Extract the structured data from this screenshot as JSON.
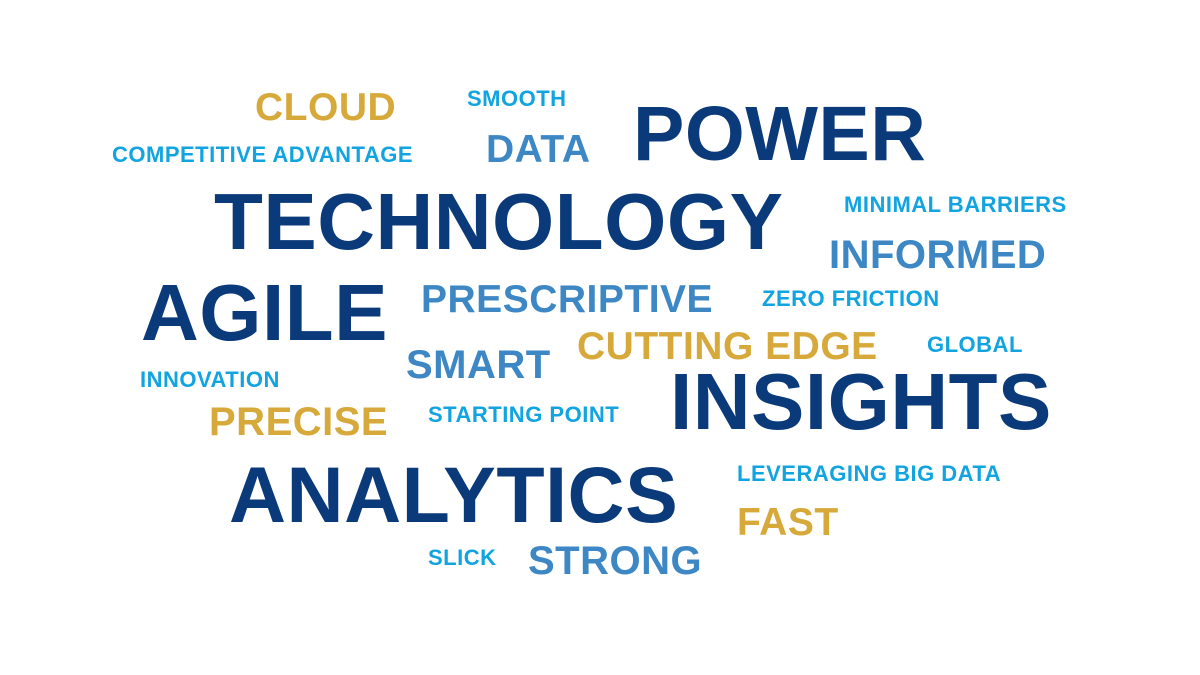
{
  "word_cloud": {
    "colors": {
      "navy": "#0b3a7a",
      "mid_blue": "#3d87c4",
      "light_blue": "#11a4e0",
      "gold": "#d6a93a"
    },
    "words": {
      "cloud": "CLOUD",
      "smooth": "SMOOTH",
      "power": "POWER",
      "competitive_advantage": "COMPETITIVE ADVANTAGE",
      "data": "DATA",
      "technology": "TECHNOLOGY",
      "minimal_barriers": "MINIMAL BARRIERS",
      "informed": "INFORMED",
      "agile": "AGILE",
      "prescriptive": "PRESCRIPTIVE",
      "zero_friction": "ZERO FRICTION",
      "cutting_edge": "CUTTING EDGE",
      "global": "GLOBAL",
      "smart": "SMART",
      "innovation": "INNOVATION",
      "insights": "INSIGHTS",
      "precise": "PRECISE",
      "starting_point": "STARTING POINT",
      "analytics": "ANALYTICS",
      "leveraging_big_data": "LEVERAGING BIG DATA",
      "fast": "FAST",
      "slick": "SLICK",
      "strong": "STRONG"
    }
  }
}
